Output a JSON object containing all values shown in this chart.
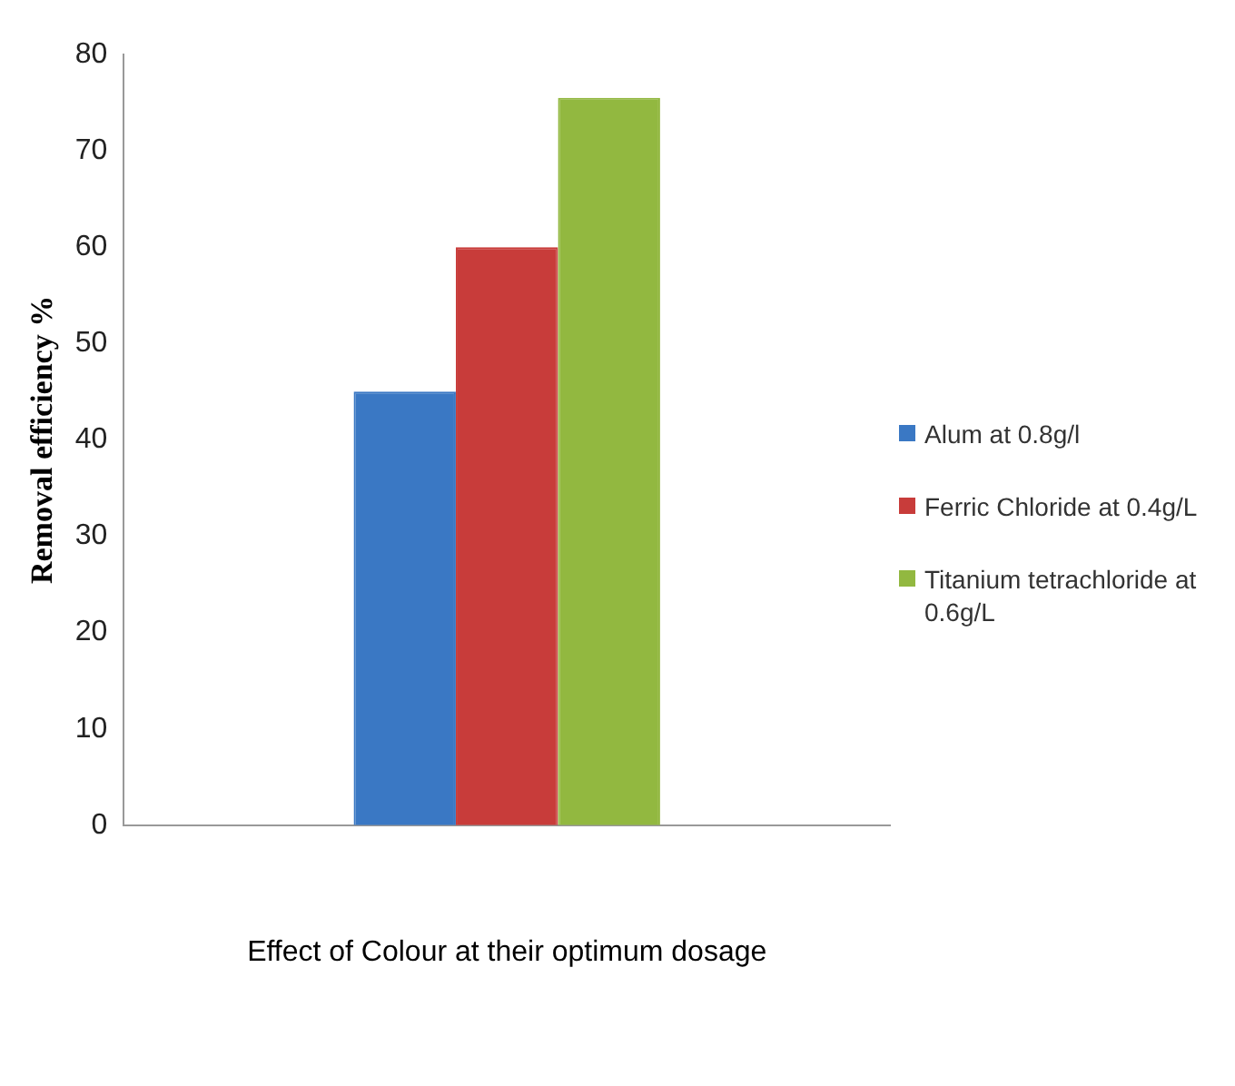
{
  "chart_data": {
    "type": "bar",
    "xlabel": "Effect of Colour at their optimum dosage",
    "ylabel": "Removal efficiency %",
    "categories": [
      null
    ],
    "series": [
      {
        "name": "Alum at 0.8g/l",
        "color": "#3a78c4",
        "values": [
          45
        ]
      },
      {
        "name": "Ferric Chloride at 0.4g/L",
        "color": "#c83c3a",
        "values": [
          60
        ]
      },
      {
        "name": "Titanium tetrachloride at 0.6g/L",
        "color": "#92b840",
        "values": [
          75.5
        ]
      }
    ],
    "ylim": [
      0,
      80
    ],
    "yticks": [
      0,
      10,
      20,
      30,
      40,
      50,
      60,
      70,
      80
    ],
    "grid": false,
    "legend": "right"
  }
}
